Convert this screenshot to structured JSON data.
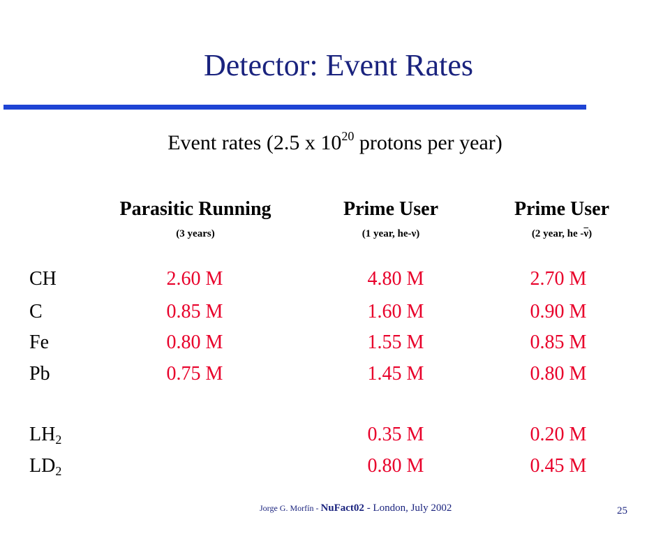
{
  "title": "Detector: Event Rates",
  "subtitle": {
    "text_before": "Event rates (2.5 x 10",
    "exponent": "20",
    "text_after": " protons per year)"
  },
  "columns": [
    {
      "name": "Parasitic Running",
      "sub": "(3 years)"
    },
    {
      "name": "Prime User",
      "sub_before": "(1 year, he-",
      "sub_nu": "ν",
      "sub_after": ")"
    },
    {
      "name": "Prime User",
      "sub_before": "(2 year, he -",
      "sub_nu": "ν",
      "sub_after": ")"
    }
  ],
  "rows": [
    {
      "label": "CH",
      "values": [
        "2.60 M",
        "4.80 M",
        "2.70 M"
      ]
    },
    {
      "label": "C",
      "values": [
        "0.85 M",
        "1.60 M",
        "0.90 M"
      ]
    },
    {
      "label": "Fe",
      "values": [
        "0.80 M",
        "1.55 M",
        "0.85 M"
      ]
    },
    {
      "label": "Pb",
      "values": [
        "0.75 M",
        "1.45 M",
        "0.80 M"
      ]
    },
    {
      "label": "LH",
      "label_sub": "2",
      "values": [
        "",
        "0.35 M",
        "0.20 M"
      ]
    },
    {
      "label": "LD",
      "label_sub": "2",
      "values": [
        "",
        "0.80 M",
        "0.45 M"
      ]
    }
  ],
  "footer": {
    "author": "Jorge G. Morfín - ",
    "conference": "NuFact02",
    "place": " - London, July 2002"
  },
  "page_number": "25",
  "colors": {
    "title": "#1a237e",
    "rule": "#1e44d4",
    "values": "#e8002a"
  }
}
